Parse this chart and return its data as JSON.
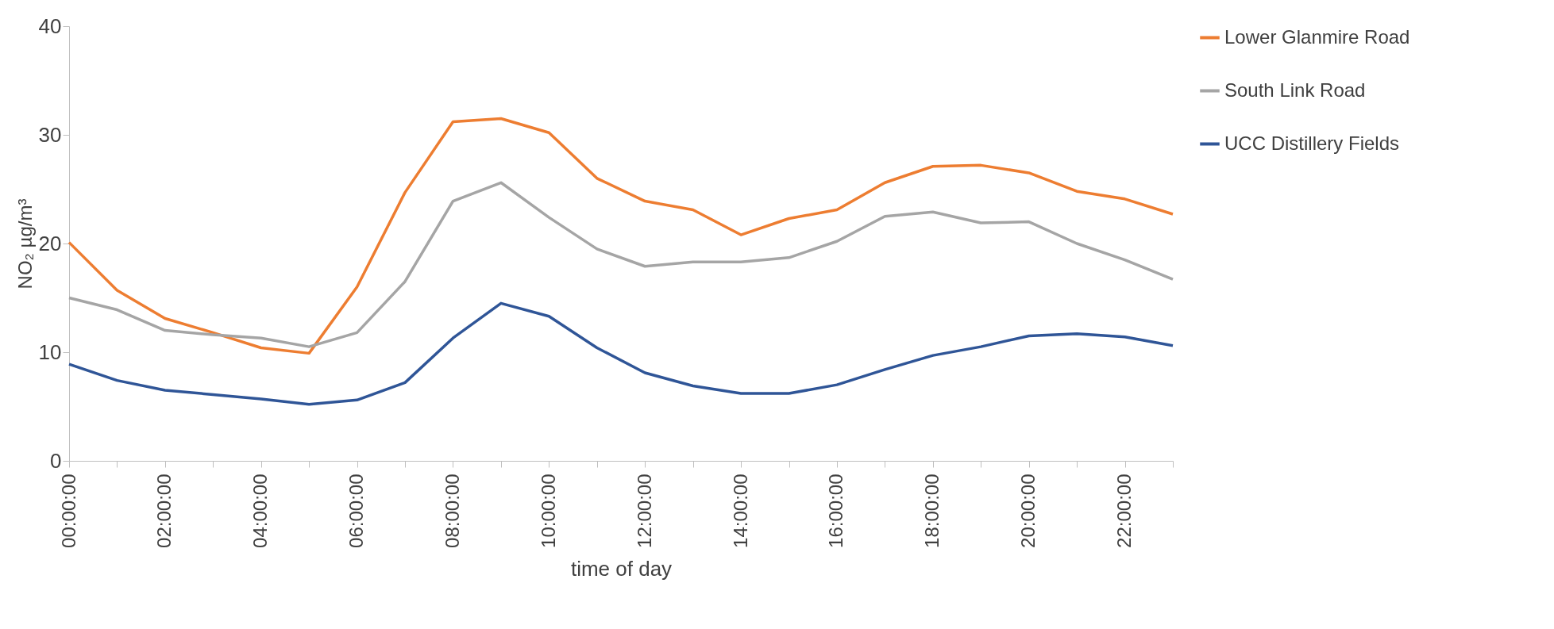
{
  "chart_data": {
    "type": "line",
    "xlabel": "time of day",
    "ylabel": "NO₂ µg/m³",
    "categories": [
      "00:00:00",
      null,
      "02:00:00",
      null,
      "04:00:00",
      null,
      "06:00:00",
      null,
      "08:00:00",
      null,
      "10:00:00",
      null,
      "12:00:00",
      null,
      "14:00:00",
      null,
      "16:00:00",
      null,
      "18:00:00",
      null,
      "20:00:00",
      null,
      "22:00:00",
      null
    ],
    "series": [
      {
        "name": "Lower Glanmire Road",
        "color": "#ed7d31",
        "values": [
          20.1,
          15.7,
          13.1,
          11.8,
          10.4,
          9.9,
          16.0,
          24.7,
          31.2,
          31.5,
          30.2,
          26.0,
          23.9,
          23.1,
          20.8,
          22.3,
          23.1,
          25.6,
          27.1,
          27.2,
          26.5,
          24.8,
          24.1,
          22.7
        ]
      },
      {
        "name": "South Link Road",
        "color": "#a5a5a5",
        "values": [
          15.0,
          13.9,
          12.0,
          11.6,
          11.3,
          10.5,
          11.8,
          16.5,
          23.9,
          25.6,
          22.4,
          19.5,
          17.9,
          18.3,
          18.3,
          18.7,
          20.2,
          22.5,
          22.9,
          21.9,
          22.0,
          20.0,
          18.5,
          16.7
        ]
      },
      {
        "name": "UCC Distillery Fields",
        "color": "#2f5597",
        "values": [
          8.9,
          7.4,
          6.5,
          6.1,
          5.7,
          5.2,
          5.6,
          7.2,
          11.3,
          14.5,
          13.3,
          10.4,
          8.1,
          6.9,
          6.2,
          6.2,
          7.0,
          8.4,
          9.7,
          10.5,
          11.5,
          11.7,
          11.4,
          10.6
        ]
      }
    ],
    "ylim": [
      0,
      40
    ],
    "yticks": [
      0,
      10,
      20,
      30,
      40
    ],
    "grid": false,
    "legend": "right",
    "marker": "none",
    "line_style": "solid"
  }
}
